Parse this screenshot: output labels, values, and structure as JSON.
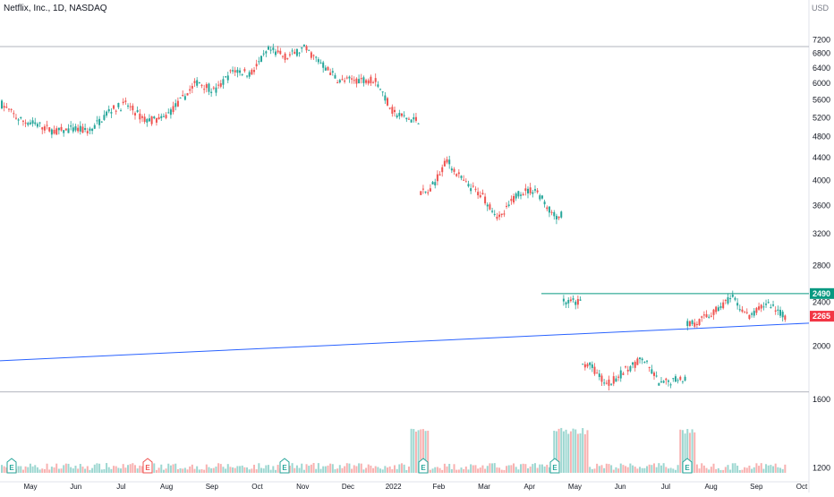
{
  "header": {
    "title": "Netflix, Inc., 1D, NASDAQ",
    "currency": "USD"
  },
  "colors": {
    "up": "#26a69a",
    "down": "#ef5350",
    "trendline": "#2962ff",
    "resistance_line": "#089981",
    "price_badge": "#f23645",
    "level_line": "#b2b5be"
  },
  "chart_data": {
    "type": "candlestick",
    "y_scale": "log",
    "ylim": [
      1150,
      7600
    ],
    "y_ticks": [
      "7200",
      "6800",
      "6400",
      "6000",
      "5600",
      "5200",
      "4800",
      "4400",
      "4000",
      "3600",
      "3200",
      "2800",
      "2400",
      "2000",
      "1600",
      "1200"
    ],
    "x_ticks": [
      "May",
      "Jun",
      "Jul",
      "Aug",
      "Sep",
      "Oct",
      "Nov",
      "Dec",
      "2022",
      "Feb",
      "Mar",
      "Apr",
      "May",
      "Jun",
      "Jul",
      "Aug",
      "Sep",
      "Oct"
    ],
    "price_path": [
      [
        "May",
        5500
      ],
      [
        "May",
        5150
      ],
      [
        "May",
        5050
      ],
      [
        "Jun",
        4900
      ],
      [
        "Jun",
        4950
      ],
      [
        "Jul",
        4920
      ],
      [
        "Jul",
        5350
      ],
      [
        "Jul",
        5500
      ],
      [
        "Aug",
        5150
      ],
      [
        "Aug",
        5150
      ],
      [
        "Sep",
        5550
      ],
      [
        "Sep",
        6050
      ],
      [
        "Sep",
        5800
      ],
      [
        "Oct",
        6350
      ],
      [
        "Oct",
        6250
      ],
      [
        "Oct",
        6900
      ],
      [
        "Nov",
        6700
      ],
      [
        "Nov",
        6950
      ],
      [
        "Nov",
        6500
      ],
      [
        "Dec",
        6050
      ],
      [
        "Dec",
        6100
      ],
      [
        "Dec",
        6100
      ],
      [
        "2022",
        5300
      ],
      [
        "2022",
        5150
      ],
      [
        "Feb",
        3800
      ],
      [
        "Feb",
        4350
      ],
      [
        "Feb",
        3950
      ],
      [
        "Mar",
        3750
      ],
      [
        "Mar",
        3400
      ],
      [
        "Apr",
        3800
      ],
      [
        "Apr",
        3850
      ],
      [
        "Apr",
        3450
      ],
      [
        "May",
        2400
      ],
      [
        "May",
        1850
      ],
      [
        "May",
        1700
      ],
      [
        "Jun",
        1800
      ],
      [
        "Jun",
        1900
      ],
      [
        "Jul",
        1700
      ],
      [
        "Jul",
        1750
      ],
      [
        "Jul",
        2200
      ],
      [
        "Aug",
        2300
      ],
      [
        "Aug",
        2450
      ],
      [
        "Sep",
        2250
      ],
      [
        "Sep",
        2400
      ],
      [
        "Sep",
        2265
      ]
    ],
    "horizontal_levels": [
      7000,
      1650
    ],
    "resistance_level": 2490,
    "trendline": [
      [
        850,
        1880
      ],
      [
        2200,
        2200
      ]
    ],
    "price_labels": [
      {
        "text": "2490",
        "value": 2490,
        "color": "#089981"
      },
      {
        "text": "2265",
        "value": 2265,
        "color": "#f23645"
      }
    ],
    "earnings_marks": [
      {
        "glyph": "E",
        "kind": "up"
      },
      {
        "glyph": "E",
        "kind": "down"
      },
      {
        "glyph": "E",
        "kind": "up"
      },
      {
        "glyph": "E",
        "kind": "up"
      },
      {
        "glyph": "E",
        "kind": "up"
      },
      {
        "glyph": "E",
        "kind": "up"
      }
    ]
  }
}
